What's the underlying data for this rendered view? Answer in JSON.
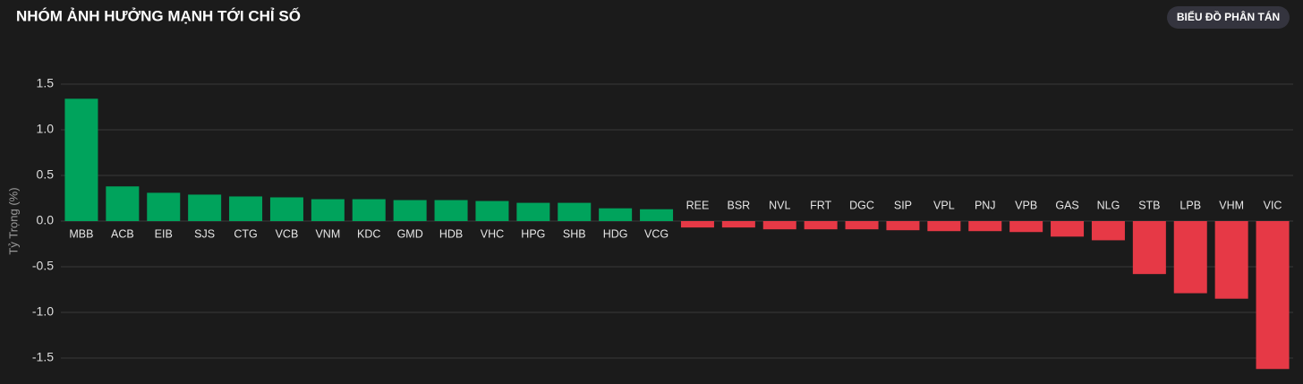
{
  "button": "BIỂU ĐỒ PHÂN TÁN",
  "chart_data": {
    "type": "bar",
    "title": "NHÓM ẢNH HƯỞNG MẠNH TỚI CHỈ SỐ",
    "y_label": "Tỷ Trọng (%)",
    "categories": [
      "MBB",
      "ACB",
      "EIB",
      "SJS",
      "CTG",
      "VCB",
      "VNM",
      "KDC",
      "GMD",
      "HDB",
      "VHC",
      "HPG",
      "SHB",
      "HDG",
      "VCG",
      "REE",
      "BSR",
      "NVL",
      "FRT",
      "DGC",
      "SIP",
      "VPL",
      "PNJ",
      "VPB",
      "GAS",
      "NLG",
      "STB",
      "LPB",
      "VHM",
      "VIC"
    ],
    "values": [
      1.34,
      0.38,
      0.31,
      0.29,
      0.27,
      0.26,
      0.24,
      0.24,
      0.23,
      0.23,
      0.22,
      0.2,
      0.2,
      0.14,
      0.13,
      -0.07,
      -0.07,
      -0.09,
      -0.09,
      -0.09,
      -0.1,
      -0.11,
      -0.11,
      -0.12,
      -0.17,
      -0.21,
      -0.58,
      -0.79,
      -0.85,
      -1.62
    ],
    "positive_color": "#00a35c",
    "negative_color": "#e63946",
    "ylim": [
      -1.65,
      1.5
    ],
    "yticks": [
      1.5,
      {
        "value": 1,
        "label": "1.0"
      },
      0.5,
      {
        "value": 0,
        "label": "0.0"
      },
      -0.5,
      {
        "value": -1,
        "label": "-1.0"
      },
      -1.5
    ],
    "grid": true
  }
}
